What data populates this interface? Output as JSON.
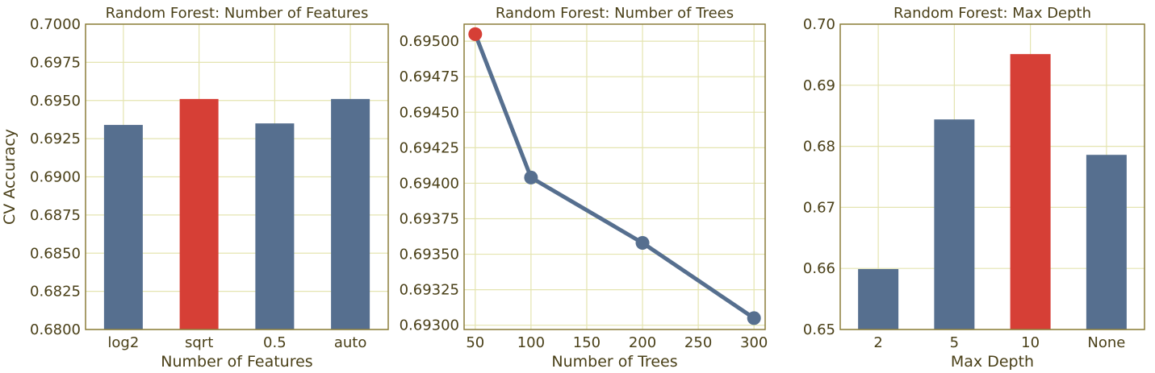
{
  "colors": {
    "bar": "#566f8f",
    "highlight": "#d63f36",
    "line": "#566f8f",
    "grid": "#e4e4b0",
    "frame": "#8b7d3a",
    "text": "#4a4018"
  },
  "chart_data": [
    {
      "type": "bar",
      "title": "Random Forest: Number of Features",
      "xlabel": "Number of Features",
      "ylabel": "CV Accuracy",
      "categories": [
        "log2",
        "sqrt",
        "0.5",
        "auto"
      ],
      "values": [
        0.6934,
        0.6951,
        0.6935,
        0.6951
      ],
      "highlight_index": 1,
      "ylim": [
        0.68,
        0.7
      ],
      "yticks": [
        "0.6800",
        "0.6825",
        "0.6850",
        "0.6875",
        "0.6900",
        "0.6925",
        "0.6950",
        "0.6975",
        "0.7000"
      ],
      "grid": true
    },
    {
      "type": "line",
      "title": "Random Forest: Number of Trees",
      "xlabel": "Number of Trees",
      "ylabel": "",
      "x": [
        50,
        100,
        200,
        300
      ],
      "values": [
        0.69505,
        0.69404,
        0.69358,
        0.69305
      ],
      "highlight_index": 0,
      "xlim": [
        40,
        310
      ],
      "ylim": [
        0.69297,
        0.69512
      ],
      "xticks": [
        "50",
        "100",
        "150",
        "200",
        "250",
        "300"
      ],
      "yticks": [
        "0.69300",
        "0.69325",
        "0.69350",
        "0.69375",
        "0.69400",
        "0.69425",
        "0.69450",
        "0.69475",
        "0.69500"
      ],
      "grid": true
    },
    {
      "type": "bar",
      "title": "Random Forest: Max Depth",
      "xlabel": "Max Depth",
      "ylabel": "",
      "categories": [
        "2",
        "5",
        "10",
        "None"
      ],
      "values": [
        0.6599,
        0.6844,
        0.6951,
        0.6786
      ],
      "highlight_index": 2,
      "ylim": [
        0.65,
        0.7
      ],
      "yticks": [
        "0.65",
        "0.66",
        "0.67",
        "0.68",
        "0.69",
        "0.70"
      ],
      "grid": true
    }
  ]
}
